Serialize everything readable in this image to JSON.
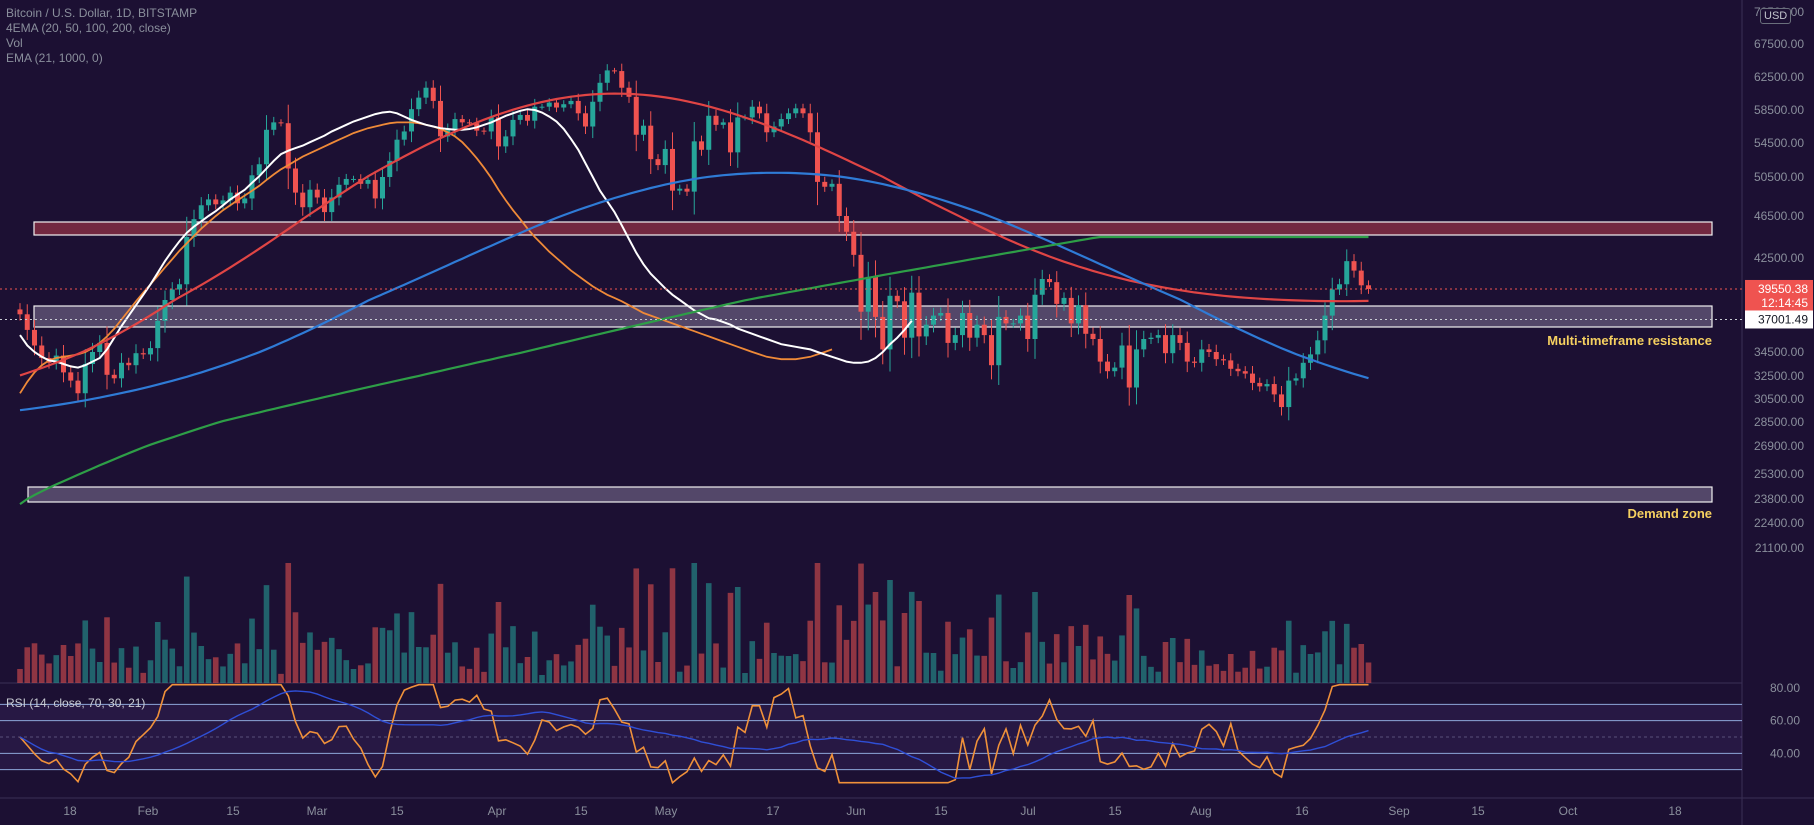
{
  "header": {
    "symbol_line": "Bitcoin / U.S. Dollar, 1D, BITSTAMP",
    "indicator_1": "4EMA (20, 50, 100, 200, close)",
    "indicator_2": "Vol",
    "indicator_3": "EMA (21, 1000, 0)",
    "currency_button": "USD"
  },
  "price_axis": {
    "ticks": [
      "72500.00",
      "67500.00",
      "62500.00",
      "58500.00",
      "54500.00",
      "50500.00",
      "46500.00",
      "42500.00",
      "38500.00",
      "34500.00",
      "32500.00",
      "30500.00",
      "28500.00",
      "26900.00",
      "25300.00",
      "23800.00",
      "22400.00",
      "21100.00"
    ],
    "last_price": "39550.38",
    "countdown": "12:14:45",
    "ema_value": "37001.49"
  },
  "rsi_axis": {
    "ticks": [
      "80.00",
      "60.00",
      "40.00"
    ]
  },
  "rsi_title": "RSI (14, close, 70, 30, 21)",
  "annotations": {
    "resistance_label": "Multi-timeframe resistance",
    "demand_label": "Demand zone"
  },
  "colors": {
    "background": "#1c1033",
    "up": "#26a69a",
    "down": "#ef5350",
    "ema20": "#ffffff",
    "ema50": "#ef8a38",
    "ema100": "#e04545",
    "ema200": "#2f7bd6",
    "ema_long": "#2e9e47",
    "annotation": "#f5d060"
  },
  "chart_data": {
    "type": "candlestick",
    "title": "",
    "x_ticks": [
      "18",
      "Feb",
      "15",
      "Mar",
      "15",
      "Apr",
      "15",
      "May",
      "17",
      "Jun",
      "15",
      "Jul",
      "15",
      "Aug",
      "16",
      "Sep",
      "15",
      "Oct",
      "18"
    ],
    "ylim": [
      26000,
      73500
    ],
    "close": [
      37400,
      36200,
      35000,
      34000,
      33600,
      34200,
      32800,
      32100,
      31000,
      33500,
      34500,
      35200,
      32600,
      32300,
      33600,
      33400,
      34400,
      34300,
      34800,
      36900,
      38500,
      39500,
      40000,
      44500,
      46200,
      47600,
      48200,
      47700,
      48100,
      48900,
      47800,
      48300,
      50700,
      52000,
      56100,
      57000,
      56900,
      51500,
      48900,
      47400,
      49200,
      48400,
      46900,
      48400,
      49700,
      50300,
      50300,
      49800,
      50200,
      48300,
      50500,
      52400,
      54900,
      55900,
      58600,
      60000,
      61200,
      59600,
      55300,
      56200,
      57400,
      57000,
      56900,
      56000,
      55900,
      57600,
      54100,
      55300,
      57300,
      57900,
      57200,
      58900,
      58900,
      59400,
      58800,
      59200,
      59600,
      58100,
      56500,
      59500,
      61800,
      63500,
      63400,
      61200,
      60100,
      55500,
      56600,
      52600,
      51900,
      53800,
      49100,
      49300,
      49000,
      54700,
      53700,
      57800,
      56700,
      57000,
      53400,
      57600,
      57600,
      58900,
      58100,
      55800,
      56500,
      57400,
      58100,
      58700,
      58100,
      55800,
      50000,
      49500,
      49800,
      46500,
      45000,
      42800,
      37600,
      40700,
      37200,
      34700,
      38900,
      38400,
      35600,
      39200,
      35700,
      36600,
      37300,
      37500,
      35200,
      35800,
      37500,
      35600,
      36600,
      35800,
      33400,
      37200,
      36700,
      36700,
      37300,
      35500,
      39000,
      40500,
      40200,
      38200,
      38700,
      36700,
      38100,
      35900,
      35500,
      33700,
      32900,
      33200,
      35000,
      31500,
      34700,
      35500,
      35600,
      35800,
      34400,
      35800,
      35200,
      33700,
      33600,
      34700,
      34500,
      33900,
      33800,
      33100,
      32900,
      32700,
      31900,
      31600,
      31800,
      30900,
      29800,
      32100,
      32300,
      33600,
      34300,
      35400,
      37300,
      39500,
      40000,
      42200,
      41300,
      39900,
      39550
    ],
    "ema20": [
      35800,
      35000,
      34500,
      34100,
      33800,
      33700,
      33500,
      33300,
      33200,
      33400,
      33700,
      34000,
      34700,
      35600,
      36500,
      37300,
      38100,
      39000,
      40000,
      41100,
      42200,
      43200,
      44100,
      44900,
      45500,
      46000,
      46500,
      47000,
      47600,
      48200,
      48700,
      49200,
      49900,
      50600,
      51500,
      52400,
      53200,
      53600,
      53900,
      54200,
      54600,
      55000,
      55400,
      55900,
      56300,
      56700,
      57100,
      57400,
      57700,
      58000,
      58200,
      58300,
      58100,
      57700,
      57300,
      57000,
      56700,
      56500,
      56300,
      56200,
      56100,
      56100,
      56200,
      56400,
      56700,
      57000,
      57400,
      57800,
      58100,
      58400,
      58600,
      58500,
      58200,
      57700,
      57100,
      56200,
      55000,
      53700,
      52100,
      50500,
      49100,
      48000,
      46900,
      45600,
      44300,
      43000,
      41900,
      41000,
      40300,
      39600,
      39000,
      38500,
      38100,
      37700,
      37400,
      37100,
      37000,
      36800,
      36600,
      36300,
      36100,
      35900,
      35700,
      35500,
      35300,
      35100,
      35000,
      34900,
      34800,
      34700,
      34500,
      34300,
      34100,
      33900,
      33700,
      33600,
      33600,
      33700,
      34000,
      34500,
      35100,
      35600,
      36200,
      36900
    ],
    "ema50": [
      31000,
      32000,
      32800,
      33400,
      33800,
      34000,
      34100,
      34200,
      34300,
      34500,
      34800,
      35200,
      35700,
      36300,
      37000,
      37700,
      38400,
      39200,
      40000,
      40800,
      41600,
      42400,
      43200,
      43900,
      44600,
      45300,
      45900,
      46500,
      47100,
      47600,
      48100,
      48600,
      49100,
      49600,
      50200,
      50800,
      51400,
      51900,
      52400,
      52900,
      53300,
      53700,
      54100,
      54500,
      54900,
      55300,
      55700,
      56000,
      56300,
      56500,
      56700,
      56900,
      57000,
      57000,
      57000,
      56900,
      56700,
      56500,
      56200,
      55800,
      55300,
      54600,
      53700,
      52700,
      51600,
      50400,
      49200,
      48100,
      47100,
      46200,
      45300,
      44500,
      43800,
      43100,
      42500,
      41900,
      41300,
      40800,
      40300,
      39800,
      39400,
      39000,
      38700,
      38400,
      38100,
      37800,
      37500,
      37300,
      37100,
      36900,
      36700,
      36500,
      36300,
      36100,
      35900,
      35700,
      35500,
      35300,
      35100,
      34900,
      34700,
      34500,
      34300,
      34100,
      34000,
      33900,
      33900,
      33900,
      34000,
      34100,
      34300,
      34500,
      34700
    ]
  }
}
